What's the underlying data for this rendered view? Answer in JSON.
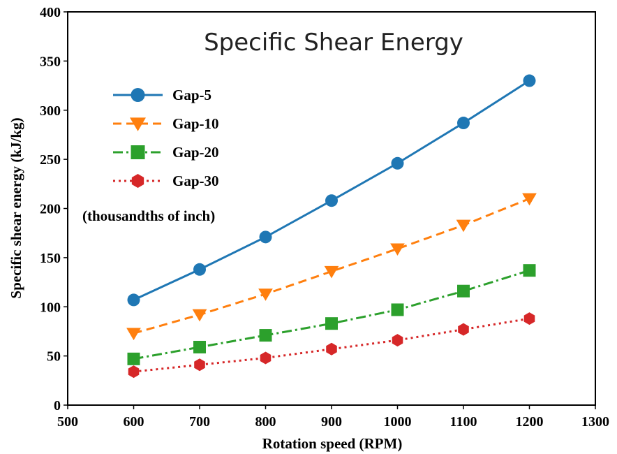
{
  "chart_data": {
    "type": "line",
    "title": "Specific Shear Energy",
    "xlabel": "Rotation speed (RPM)",
    "ylabel": "Specific shear energy (kJ/kg)",
    "xlim": [
      500,
      1300
    ],
    "ylim": [
      0,
      400
    ],
    "xticks": [
      500,
      600,
      700,
      800,
      900,
      1000,
      1100,
      1200,
      1300
    ],
    "yticks": [
      0,
      50,
      100,
      150,
      200,
      250,
      300,
      350,
      400
    ],
    "grid": false,
    "legend_position": "top-left",
    "note": "(thousandths of inch)",
    "x": [
      600,
      700,
      800,
      900,
      1000,
      1100,
      1200
    ],
    "series": [
      {
        "name": "Gap-5",
        "color": "#1f77b4",
        "marker": "circle",
        "line_style": "solid",
        "values": [
          107,
          138,
          171,
          208,
          246,
          287,
          330
        ]
      },
      {
        "name": "Gap-10",
        "color": "#ff7f0e",
        "marker": "triangle-down",
        "line_style": "dashed",
        "values": [
          73,
          92,
          113,
          136,
          159,
          183,
          210
        ]
      },
      {
        "name": "Gap-20",
        "color": "#2ca02c",
        "marker": "square",
        "line_style": "dashdot",
        "values": [
          47,
          59,
          71,
          83,
          97,
          116,
          137
        ]
      },
      {
        "name": "Gap-30",
        "color": "#d62728",
        "marker": "hexagon",
        "line_style": "dotted",
        "values": [
          34,
          41,
          48,
          57,
          66,
          77,
          88
        ]
      }
    ]
  }
}
